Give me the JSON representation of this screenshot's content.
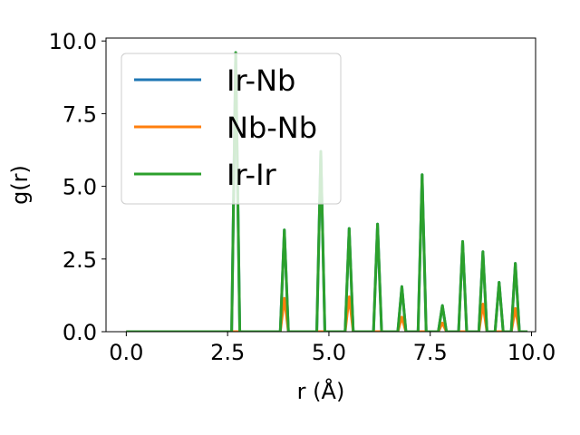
{
  "chart_data": {
    "type": "line",
    "xlabel": "r (Å)",
    "ylabel": "g(r)",
    "xlim": [
      -0.5,
      10.1
    ],
    "ylim": [
      0.0,
      10.1
    ],
    "xticks": [
      "0.0",
      "2.5",
      "5.0",
      "7.5",
      "10.0"
    ],
    "yticks": [
      "0.0",
      "2.5",
      "5.0",
      "7.5",
      "10.0"
    ],
    "grid": false,
    "legend_position": "upper-left",
    "peak_halfwidth": 0.1,
    "x_start": 0.0,
    "x_end": 9.9,
    "series": [
      {
        "name": "Ir-Nb",
        "color": "#1f77b4",
        "peaks": [
          {
            "x": 2.7,
            "y": 9.6
          },
          {
            "x": 3.9,
            "y": 3.5
          },
          {
            "x": 4.8,
            "y": 6.2
          },
          {
            "x": 5.5,
            "y": 3.55
          },
          {
            "x": 6.2,
            "y": 3.7
          },
          {
            "x": 6.8,
            "y": 1.55
          },
          {
            "x": 7.3,
            "y": 5.4
          },
          {
            "x": 7.8,
            "y": 0.9
          },
          {
            "x": 8.3,
            "y": 3.1
          },
          {
            "x": 8.8,
            "y": 2.75
          },
          {
            "x": 9.2,
            "y": 1.7
          },
          {
            "x": 9.6,
            "y": 2.35
          }
        ]
      },
      {
        "name": "Nb-Nb",
        "color": "#ff7f0e",
        "peaks": [
          {
            "x": 3.9,
            "y": 1.15
          },
          {
            "x": 5.5,
            "y": 1.2
          },
          {
            "x": 6.8,
            "y": 0.5
          },
          {
            "x": 7.8,
            "y": 0.3
          },
          {
            "x": 8.8,
            "y": 0.95
          },
          {
            "x": 9.6,
            "y": 0.8
          }
        ]
      },
      {
        "name": "Ir-Ir",
        "color": "#2ca02c",
        "peaks": [
          {
            "x": 2.7,
            "y": 9.6
          },
          {
            "x": 3.9,
            "y": 3.5
          },
          {
            "x": 4.8,
            "y": 6.2
          },
          {
            "x": 5.5,
            "y": 3.55
          },
          {
            "x": 6.2,
            "y": 3.7
          },
          {
            "x": 6.8,
            "y": 1.55
          },
          {
            "x": 7.3,
            "y": 5.4
          },
          {
            "x": 7.8,
            "y": 0.9
          },
          {
            "x": 8.3,
            "y": 3.1
          },
          {
            "x": 8.8,
            "y": 2.75
          },
          {
            "x": 9.2,
            "y": 1.7
          },
          {
            "x": 9.6,
            "y": 2.35
          }
        ]
      }
    ]
  }
}
